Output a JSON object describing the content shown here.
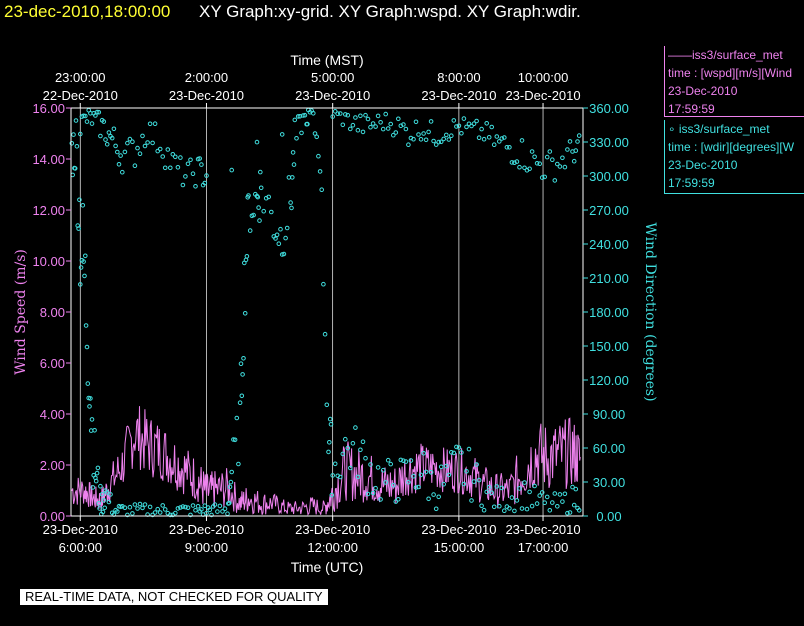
{
  "header": {
    "time": "23-dec-2010,18:00:00",
    "graphs": "XY Graph:xy-grid.  XY Graph:wspd.  XY Graph:wdir."
  },
  "legend": {
    "wspd": {
      "name": "——iss3/surface_met",
      "desc": "time : [wspd][m/s][Wind",
      "date": "23-Dec-2010",
      "time": "17:59:59"
    },
    "wdir": {
      "name": "∘ iss3/surface_met",
      "desc": "time : [wdir][degrees][W",
      "date": "23-Dec-2010",
      "time": "17:59:59"
    }
  },
  "footer": {
    "quality_note": "REAL-TIME DATA, NOT CHECKED FOR QUALITY"
  },
  "colors": {
    "wspd": "#ee82ee",
    "wdir": "#40e0e0",
    "grid": "#ffffff",
    "axis": "#ffffff",
    "bg": "#000000"
  },
  "chart_data": {
    "type": "line",
    "top_xlabel": "Time (MST)",
    "xlabel": "Time (UTC)",
    "ylabel": "Wind Speed (m/s)",
    "y2label": "Wind Direction (degrees)",
    "xlim": [
      5.78,
      17.95
    ],
    "ylim": [
      0,
      16
    ],
    "y2lim": [
      0,
      360
    ],
    "grid": "vertical",
    "x_ticks": [
      {
        "x": 6,
        "line1": "23-Dec-2010",
        "line2": "6:00:00"
      },
      {
        "x": 9,
        "line1": "23-Dec-2010",
        "line2": "9:00:00"
      },
      {
        "x": 12,
        "line1": "23-Dec-2010",
        "line2": "12:00:00"
      },
      {
        "x": 15,
        "line1": "23-Dec-2010",
        "line2": "15:00:00"
      },
      {
        "x": 17,
        "line1": "23-Dec-2010",
        "line2": "17:00:00"
      }
    ],
    "top_ticks": [
      {
        "x": 6,
        "line1": "23:00:00",
        "line2": "22-Dec-2010"
      },
      {
        "x": 9,
        "line1": "2:00:00",
        "line2": "23-Dec-2010"
      },
      {
        "x": 12,
        "line1": "5:00:00",
        "line2": "23-Dec-2010"
      },
      {
        "x": 15,
        "line1": "8:00:00",
        "line2": "23-Dec-2010"
      },
      {
        "x": 17,
        "line1": "10:00:00",
        "line2": "23-Dec-2010"
      }
    ],
    "y_ticks": [
      "0.00",
      "2.00",
      "4.00",
      "6.00",
      "8.00",
      "10.00",
      "12.00",
      "14.00",
      "16.00"
    ],
    "y2_ticks": [
      "0.00",
      "30.00",
      "60.00",
      "90.00",
      "120.00",
      "150.00",
      "180.00",
      "210.00",
      "240.00",
      "270.00",
      "300.00",
      "330.00",
      "360.00"
    ],
    "series": [
      {
        "key": "wspd",
        "axis": "left",
        "style": "line",
        "x": [
          5.8,
          6.1,
          6.3,
          6.5,
          6.7,
          7.0,
          7.3,
          7.6,
          7.9,
          8.2,
          8.5,
          8.8,
          9.0,
          9.2,
          9.5,
          9.8,
          10.0,
          10.3,
          10.6,
          10.9,
          11.2,
          11.5,
          11.8,
          12.0,
          12.3,
          12.6,
          12.9,
          13.2,
          13.5,
          13.8,
          14.1,
          14.4,
          14.7,
          15.0,
          15.3,
          15.6,
          15.9,
          16.2,
          16.5,
          16.8,
          17.1,
          17.4,
          17.7,
          17.9
        ],
        "values": [
          1.0,
          1.0,
          0.7,
          0.6,
          1.2,
          2.0,
          3.3,
          2.8,
          2.6,
          2.2,
          1.8,
          1.4,
          0.9,
          1.0,
          1.1,
          0.5,
          0.7,
          0.5,
          0.5,
          0.3,
          0.3,
          0.4,
          0.3,
          0.9,
          1.8,
          1.6,
          1.5,
          1.2,
          1.2,
          1.8,
          1.9,
          1.9,
          1.8,
          1.8,
          1.6,
          1.2,
          1.0,
          1.0,
          1.7,
          2.4,
          2.3,
          2.4,
          2.5,
          2.2
        ],
        "noise": [
          0.7,
          0.6,
          0.5,
          0.5,
          0.7,
          1.0,
          1.3,
          1.3,
          1.2,
          1.1,
          1.0,
          0.9,
          0.8,
          0.8,
          0.8,
          0.5,
          0.6,
          0.5,
          0.4,
          0.3,
          0.3,
          0.4,
          0.3,
          0.8,
          1.2,
          1.1,
          1.0,
          0.9,
          0.9,
          1.0,
          1.0,
          0.9,
          0.9,
          0.9,
          0.9,
          0.8,
          0.7,
          0.7,
          1.2,
          1.4,
          1.4,
          1.4,
          1.4,
          1.2
        ]
      },
      {
        "key": "wdir",
        "axis": "right",
        "style": "scatter",
        "x": [
          5.8,
          5.9,
          6.0,
          6.1,
          6.2,
          6.3,
          6.4,
          6.5,
          6.6,
          6.8,
          7.0,
          7.3,
          7.6,
          7.9,
          8.2,
          8.5,
          8.8,
          9.0,
          9.2,
          9.5,
          9.6,
          9.8,
          9.9,
          10.0,
          10.2,
          10.3,
          10.6,
          10.8,
          11.0,
          11.1,
          11.3,
          11.5,
          11.7,
          11.9,
          12.0,
          12.3,
          12.6,
          12.9,
          13.2,
          13.5,
          13.8,
          14.1,
          14.4,
          14.7,
          15.0,
          15.3,
          15.6,
          15.9,
          16.2,
          16.5,
          16.8,
          17.1,
          17.4,
          17.7,
          17.9
        ],
        "values": [
          320,
          330,
          250,
          210,
          150,
          60,
          30,
          10,
          20,
          5,
          5,
          5,
          5,
          5,
          5,
          5,
          5,
          5,
          5,
          5,
          40,
          80,
          200,
          270,
          280,
          290,
          260,
          245,
          280,
          330,
          350,
          355,
          320,
          70,
          40,
          60,
          55,
          40,
          30,
          30,
          35,
          40,
          25,
          30,
          45,
          35,
          20,
          15,
          15,
          20,
          15,
          10,
          10,
          15,
          20
        ],
        "noise": [
          25,
          30,
          60,
          60,
          60,
          35,
          25,
          10,
          15,
          6,
          6,
          6,
          6,
          6,
          6,
          6,
          6,
          6,
          6,
          6,
          20,
          30,
          40,
          25,
          25,
          30,
          25,
          20,
          30,
          20,
          8,
          6,
          20,
          40,
          25,
          25,
          25,
          25,
          22,
          20,
          22,
          25,
          20,
          22,
          25,
          22,
          15,
          12,
          12,
          14,
          12,
          10,
          10,
          12,
          15
        ]
      },
      {
        "key": "wdir_upper",
        "axis": "right",
        "style": "scatter",
        "x": [
          6.0,
          6.2,
          6.4,
          6.6,
          6.8,
          7.0,
          7.3,
          7.6,
          7.9,
          8.2,
          8.5,
          8.8,
          9.0,
          12.0,
          12.3,
          12.6,
          12.9,
          13.2,
          13.5,
          13.8,
          14.1,
          14.4,
          14.7,
          15.0,
          15.3,
          15.6,
          15.9,
          16.2,
          16.5,
          16.8,
          17.1,
          17.4,
          17.7,
          17.9
        ],
        "values": [
          345,
          352,
          348,
          340,
          330,
          318,
          322,
          340,
          330,
          310,
          300,
          305,
          300,
          355,
          350,
          345,
          345,
          348,
          345,
          338,
          342,
          336,
          340,
          344,
          340,
          338,
          330,
          325,
          320,
          312,
          308,
          312,
          322,
          325
        ],
        "noise": [
          12,
          8,
          10,
          14,
          15,
          15,
          15,
          12,
          15,
          15,
          12,
          14,
          14,
          5,
          8,
          10,
          10,
          9,
          10,
          12,
          10,
          12,
          10,
          9,
          10,
          10,
          12,
          14,
          15,
          15,
          15,
          14,
          12,
          12
        ]
      }
    ]
  }
}
